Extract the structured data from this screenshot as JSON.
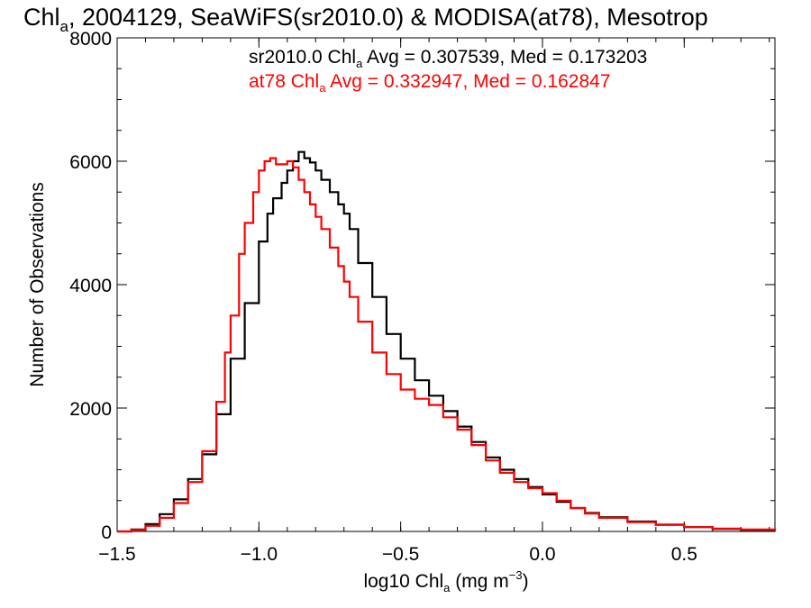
{
  "chart_data": {
    "type": "line",
    "title": {
      "text": "Chl",
      "sub": "a",
      "rest": ", 2004129, SeaWiFS(sr2010.0) & MODISA(at78), Mesotrop"
    },
    "xlabel": {
      "pre": "log10 Chl",
      "sub": "a",
      "mid": " (mg m",
      "sup": "−3",
      "post": ")"
    },
    "ylabel": "Number of Observations",
    "xlim": [
      -1.5,
      0.82
    ],
    "ylim": [
      0,
      8000
    ],
    "x_ticks": [
      {
        "value": -1.5,
        "label": "−1.5"
      },
      {
        "value": -1.0,
        "label": "−1.0"
      },
      {
        "value": -0.5,
        "label": "−0.5"
      },
      {
        "value": 0.0,
        "label": "0.0"
      },
      {
        "value": 0.5,
        "label": "0.5"
      }
    ],
    "y_ticks": [
      {
        "value": 0,
        "label": "0"
      },
      {
        "value": 2000,
        "label": "2000"
      },
      {
        "value": 4000,
        "label": "4000"
      },
      {
        "value": 6000,
        "label": "6000"
      },
      {
        "value": 8000,
        "label": "8000"
      }
    ],
    "grid": false,
    "series": [
      {
        "color": "#000000",
        "legend": {
          "pre": "sr2010.0 Chl",
          "sub": "a",
          "post": " Avg = 0.307539, Med = 0.173203"
        },
        "points": [
          [
            -1.5,
            0
          ],
          [
            -1.45,
            30
          ],
          [
            -1.4,
            120
          ],
          [
            -1.35,
            280
          ],
          [
            -1.3,
            520
          ],
          [
            -1.25,
            850
          ],
          [
            -1.2,
            1250
          ],
          [
            -1.15,
            1900
          ],
          [
            -1.1,
            2800
          ],
          [
            -1.05,
            3700
          ],
          [
            -1.0,
            4700
          ],
          [
            -0.97,
            5150
          ],
          [
            -0.95,
            5400
          ],
          [
            -0.92,
            5650
          ],
          [
            -0.9,
            5850
          ],
          [
            -0.88,
            6000
          ],
          [
            -0.86,
            6150
          ],
          [
            -0.84,
            6050
          ],
          [
            -0.82,
            5980
          ],
          [
            -0.8,
            5850
          ],
          [
            -0.78,
            5700
          ],
          [
            -0.75,
            5500
          ],
          [
            -0.72,
            5300
          ],
          [
            -0.7,
            5150
          ],
          [
            -0.68,
            4900
          ],
          [
            -0.65,
            4350
          ],
          [
            -0.6,
            3800
          ],
          [
            -0.55,
            3200
          ],
          [
            -0.5,
            2800
          ],
          [
            -0.45,
            2450
          ],
          [
            -0.4,
            2200
          ],
          [
            -0.35,
            1950
          ],
          [
            -0.3,
            1700
          ],
          [
            -0.25,
            1450
          ],
          [
            -0.2,
            1200
          ],
          [
            -0.15,
            1000
          ],
          [
            -0.1,
            850
          ],
          [
            -0.05,
            720
          ],
          [
            0.0,
            600
          ],
          [
            0.05,
            480
          ],
          [
            0.1,
            380
          ],
          [
            0.15,
            300
          ],
          [
            0.2,
            230
          ],
          [
            0.3,
            160
          ],
          [
            0.4,
            110
          ],
          [
            0.5,
            70
          ],
          [
            0.6,
            40
          ],
          [
            0.7,
            25
          ],
          [
            0.82,
            10
          ]
        ]
      },
      {
        "color": "#ff0000",
        "legend": {
          "pre": "at78 Chl",
          "sub": "a",
          "post": " Avg = 0.332947, Med = 0.162847"
        },
        "points": [
          [
            -1.5,
            0
          ],
          [
            -1.45,
            25
          ],
          [
            -1.4,
            90
          ],
          [
            -1.35,
            220
          ],
          [
            -1.3,
            460
          ],
          [
            -1.25,
            800
          ],
          [
            -1.2,
            1300
          ],
          [
            -1.15,
            2100
          ],
          [
            -1.12,
            2900
          ],
          [
            -1.1,
            3500
          ],
          [
            -1.07,
            4500
          ],
          [
            -1.05,
            5000
          ],
          [
            -1.02,
            5500
          ],
          [
            -1.0,
            5850
          ],
          [
            -0.98,
            6000
          ],
          [
            -0.96,
            6050
          ],
          [
            -0.94,
            5950
          ],
          [
            -0.92,
            5950
          ],
          [
            -0.9,
            6000
          ],
          [
            -0.88,
            5900
          ],
          [
            -0.86,
            5700
          ],
          [
            -0.84,
            5500
          ],
          [
            -0.82,
            5300
          ],
          [
            -0.8,
            5100
          ],
          [
            -0.78,
            4900
          ],
          [
            -0.75,
            4600
          ],
          [
            -0.72,
            4300
          ],
          [
            -0.7,
            4050
          ],
          [
            -0.68,
            3800
          ],
          [
            -0.65,
            3400
          ],
          [
            -0.6,
            2900
          ],
          [
            -0.55,
            2550
          ],
          [
            -0.5,
            2300
          ],
          [
            -0.45,
            2150
          ],
          [
            -0.4,
            2050
          ],
          [
            -0.35,
            1850
          ],
          [
            -0.3,
            1650
          ],
          [
            -0.25,
            1400
          ],
          [
            -0.2,
            1150
          ],
          [
            -0.15,
            950
          ],
          [
            -0.1,
            800
          ],
          [
            -0.05,
            700
          ],
          [
            0.0,
            620
          ],
          [
            0.05,
            500
          ],
          [
            0.1,
            380
          ],
          [
            0.15,
            290
          ],
          [
            0.2,
            220
          ],
          [
            0.3,
            150
          ],
          [
            0.4,
            105
          ],
          [
            0.5,
            70
          ],
          [
            0.6,
            45
          ],
          [
            0.7,
            30
          ],
          [
            0.82,
            15
          ]
        ]
      }
    ]
  }
}
